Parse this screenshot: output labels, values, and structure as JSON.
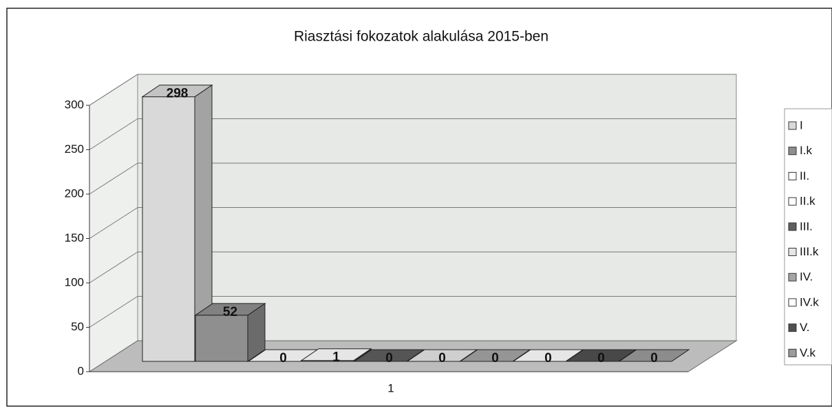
{
  "chart_data": {
    "type": "bar3d",
    "title": "Riasztási fokozatok alakulása 2015-ben",
    "categories": [
      "1"
    ],
    "series": [
      {
        "name": "I",
        "color": "#d9d9d9",
        "values": [
          298
        ]
      },
      {
        "name": "I.k",
        "color": "#8f8f8f",
        "values": [
          52
        ]
      },
      {
        "name": "II.",
        "color": "#ffffff",
        "values": [
          0
        ]
      },
      {
        "name": "II.k",
        "color": "#ffffff",
        "values": [
          1
        ]
      },
      {
        "name": "III.",
        "color": "#5e5e5e",
        "values": [
          0
        ]
      },
      {
        "name": "III.k",
        "color": "#e6e6e6",
        "values": [
          0
        ]
      },
      {
        "name": "IV.",
        "color": "#a5a5a5",
        "values": [
          0
        ]
      },
      {
        "name": "IV.k",
        "color": "#ffffff",
        "values": [
          0
        ]
      },
      {
        "name": "V.",
        "color": "#505050",
        "values": [
          0
        ]
      },
      {
        "name": "V.k",
        "color": "#9c9c9c",
        "values": [
          0
        ]
      }
    ],
    "ylim": [
      0,
      300
    ],
    "yticks": [
      0,
      50,
      100,
      150,
      200,
      250,
      300
    ],
    "grid": true,
    "legend": "right"
  }
}
